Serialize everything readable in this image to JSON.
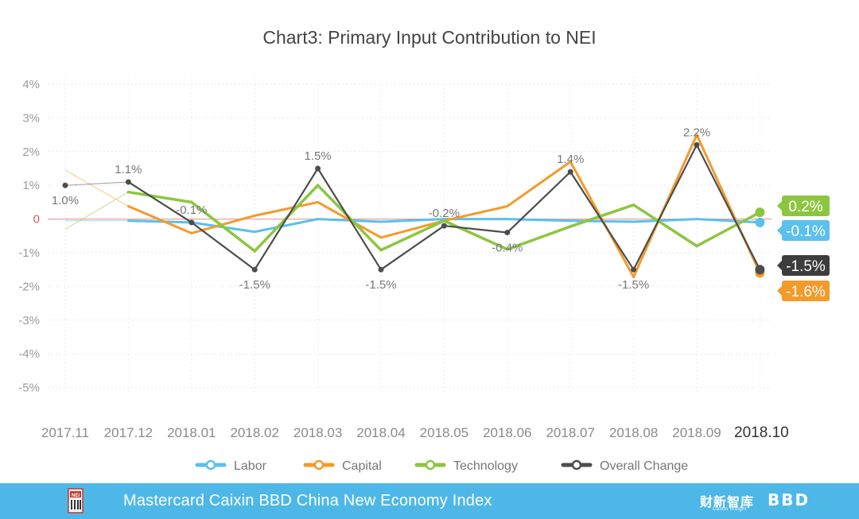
{
  "chart_data": {
    "type": "line",
    "title": "Chart3: Primary Input Contribution to NEI",
    "categories": [
      "2017.11",
      "2017.12",
      "2018.01",
      "2018.02",
      "2018.03",
      "2018.04",
      "2018.05",
      "2018.06",
      "2018.07",
      "2018.08",
      "2018.09",
      "2018.10"
    ],
    "y_ticks": [
      {
        "value": 4,
        "label": "4%"
      },
      {
        "value": 3,
        "label": "3%"
      },
      {
        "value": 2,
        "label": "2%"
      },
      {
        "value": 1,
        "label": "1%"
      },
      {
        "value": 0,
        "label": "0"
      },
      {
        "value": -1,
        "label": "-1%"
      },
      {
        "value": -2,
        "label": "-2%"
      },
      {
        "value": -3,
        "label": "-3%"
      },
      {
        "value": -4,
        "label": "-4%"
      },
      {
        "value": -5,
        "label": "-5%"
      }
    ],
    "ylim": [
      -5,
      4
    ],
    "series": [
      {
        "name": "Labor",
        "color": "#5bc0eb",
        "values": [
          -0.05,
          -0.05,
          -0.1,
          -0.38,
          0.0,
          -0.08,
          0.0,
          0.0,
          -0.05,
          -0.08,
          0.0,
          -0.1
        ]
      },
      {
        "name": "Capital",
        "color": "#f39a2b",
        "values": [
          1.45,
          0.38,
          -0.42,
          0.1,
          0.5,
          -0.55,
          -0.05,
          0.38,
          1.7,
          -1.72,
          2.5,
          -1.6
        ]
      },
      {
        "name": "Technology",
        "color": "#8cc63f",
        "values": [
          -0.3,
          0.8,
          0.5,
          -0.95,
          1.0,
          -0.92,
          -0.05,
          -0.9,
          -0.22,
          0.42,
          -0.8,
          0.2
        ]
      },
      {
        "name": "Overall Change",
        "color": "#4d4d4d",
        "values": [
          1.0,
          1.1,
          -0.1,
          -1.5,
          1.5,
          -1.5,
          -0.2,
          -0.4,
          1.4,
          -1.5,
          2.2,
          -1.5
        ]
      }
    ],
    "point_labels": [
      {
        "index": 0,
        "value": 1.0,
        "text": "1.0%",
        "pos": "below"
      },
      {
        "index": 1,
        "value": 1.1,
        "text": "1.1%",
        "pos": "above"
      },
      {
        "index": 2,
        "value": -0.1,
        "text": "-0.1%",
        "pos": "above"
      },
      {
        "index": 3,
        "value": -1.5,
        "text": "-1.5%",
        "pos": "below"
      },
      {
        "index": 4,
        "value": 1.5,
        "text": "1.5%",
        "pos": "above"
      },
      {
        "index": 5,
        "value": -1.5,
        "text": "-1.5%",
        "pos": "below"
      },
      {
        "index": 6,
        "value": -0.2,
        "text": "-0.2%",
        "pos": "above"
      },
      {
        "index": 7,
        "value": -0.4,
        "text": "-0.4%",
        "pos": "below"
      },
      {
        "index": 8,
        "value": 1.4,
        "text": "1.4%",
        "pos": "above"
      },
      {
        "index": 9,
        "value": -1.5,
        "text": "-1.5%",
        "pos": "below"
      },
      {
        "index": 10,
        "value": 2.2,
        "text": "2.2%",
        "pos": "above"
      }
    ],
    "end_labels": [
      {
        "series": "Technology",
        "text": "0.2%",
        "color": "#8cc63f"
      },
      {
        "series": "Labor",
        "text": "-0.1%",
        "color": "#5bc0eb"
      },
      {
        "series": "Overall Change",
        "text": "-1.5%",
        "color": "#3d3d3d"
      },
      {
        "series": "Capital",
        "text": "-1.6%",
        "color": "#f39a2b"
      }
    ],
    "legend_position": "bottom",
    "grid": true
  },
  "footer": {
    "title": "Mastercard Caixin BBD China New Economy Index",
    "logo_text": "NEI",
    "caixin_brand": "财新智库",
    "caixin_sub": "Caixin Insight",
    "bbd_brand": "BBD"
  }
}
